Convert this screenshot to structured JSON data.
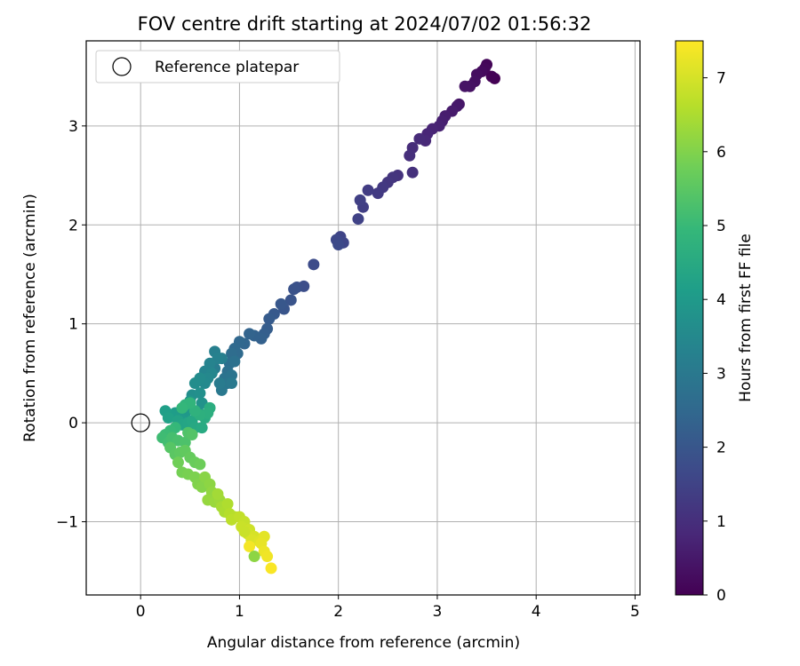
{
  "chart_data": {
    "type": "scatter",
    "title": "FOV centre drift starting at 2024/07/02 01:56:32",
    "xlabel": "Angular distance from reference (arcmin)",
    "ylabel": "Rotation from reference (arcmin)",
    "xlim": [
      -0.55,
      5.05
    ],
    "ylim": [
      -1.74,
      3.86
    ],
    "xticks": [
      0,
      1,
      2,
      3,
      4,
      5
    ],
    "yticks": [
      -1,
      0,
      1,
      2,
      3
    ],
    "grid": true,
    "legend": {
      "placement": "top-left",
      "entries": [
        "Reference platepar"
      ]
    },
    "reference_point": {
      "x": 0,
      "y": 0
    },
    "colorbar": {
      "label": "Hours from first FF file",
      "range": [
        0,
        7.5
      ],
      "ticks": [
        0,
        1,
        2,
        3,
        4,
        5,
        6,
        7
      ],
      "colormap": "viridis",
      "colors": [
        "#440154",
        "#482878",
        "#3e4989",
        "#31688e",
        "#26828e",
        "#1f9e89",
        "#35b779",
        "#6ece58",
        "#b5de2b",
        "#fde725"
      ]
    },
    "series": [
      {
        "points": [
          [
            3.58,
            3.48,
            0.0
          ],
          [
            3.55,
            3.5,
            0.05
          ],
          [
            3.5,
            3.62,
            0.1
          ],
          [
            3.48,
            3.58,
            0.15
          ],
          [
            3.45,
            3.55,
            0.2
          ],
          [
            3.4,
            3.52,
            0.25
          ],
          [
            3.38,
            3.45,
            0.3
          ],
          [
            3.33,
            3.4,
            0.35
          ],
          [
            3.28,
            3.4,
            0.4
          ],
          [
            3.22,
            3.22,
            0.45
          ],
          [
            3.2,
            3.2,
            0.5
          ],
          [
            3.15,
            3.15,
            0.55
          ],
          [
            3.08,
            3.1,
            0.6
          ],
          [
            3.05,
            3.05,
            0.65
          ],
          [
            3.02,
            3.0,
            0.7
          ],
          [
            2.95,
            2.97,
            0.75
          ],
          [
            2.9,
            2.92,
            0.8
          ],
          [
            2.88,
            2.85,
            0.85
          ],
          [
            2.82,
            2.87,
            0.9
          ],
          [
            2.75,
            2.78,
            0.95
          ],
          [
            2.72,
            2.7,
            1.0
          ],
          [
            2.75,
            2.53,
            1.05
          ],
          [
            2.6,
            2.5,
            1.1
          ],
          [
            2.55,
            2.48,
            1.15
          ],
          [
            2.5,
            2.43,
            1.2
          ],
          [
            2.45,
            2.38,
            1.25
          ],
          [
            2.4,
            2.32,
            1.3
          ],
          [
            2.3,
            2.35,
            1.35
          ],
          [
            2.25,
            2.18,
            1.4
          ],
          [
            2.22,
            2.25,
            1.45
          ],
          [
            2.2,
            2.06,
            1.5
          ],
          [
            2.02,
            1.88,
            1.55
          ],
          [
            2.05,
            1.82,
            1.6
          ],
          [
            1.98,
            1.85,
            1.65
          ],
          [
            2.0,
            1.8,
            1.7
          ],
          [
            1.75,
            1.6,
            1.75
          ],
          [
            1.65,
            1.38,
            1.8
          ],
          [
            1.58,
            1.37,
            1.85
          ],
          [
            1.55,
            1.35,
            1.9
          ],
          [
            1.52,
            1.24,
            1.95
          ],
          [
            1.45,
            1.15,
            2.0
          ],
          [
            1.42,
            1.2,
            2.05
          ],
          [
            1.35,
            1.1,
            2.1
          ],
          [
            1.3,
            1.05,
            2.15
          ],
          [
            1.28,
            0.95,
            2.2
          ],
          [
            1.25,
            0.9,
            2.25
          ],
          [
            1.22,
            0.85,
            2.3
          ],
          [
            1.15,
            0.88,
            2.35
          ],
          [
            1.1,
            0.9,
            2.4
          ],
          [
            1.05,
            0.8,
            2.45
          ],
          [
            1.0,
            0.82,
            2.5
          ],
          [
            0.95,
            0.75,
            2.55
          ],
          [
            0.98,
            0.7,
            2.6
          ],
          [
            0.92,
            0.7,
            2.65
          ],
          [
            0.9,
            0.6,
            2.7
          ],
          [
            0.88,
            0.52,
            2.75
          ],
          [
            0.95,
            0.62,
            2.8
          ],
          [
            0.85,
            0.45,
            2.85
          ],
          [
            0.92,
            0.48,
            2.9
          ],
          [
            0.88,
            0.4,
            2.95
          ],
          [
            0.82,
            0.33,
            3.0
          ],
          [
            0.92,
            0.4,
            3.05
          ],
          [
            0.8,
            0.4,
            3.1
          ],
          [
            0.75,
            0.55,
            3.15
          ],
          [
            0.82,
            0.65,
            3.2
          ],
          [
            0.75,
            0.72,
            3.25
          ],
          [
            0.78,
            0.65,
            3.3
          ],
          [
            0.7,
            0.6,
            3.35
          ],
          [
            0.65,
            0.52,
            3.4
          ],
          [
            0.72,
            0.5,
            3.45
          ],
          [
            0.68,
            0.45,
            3.5
          ],
          [
            0.65,
            0.4,
            3.55
          ],
          [
            0.6,
            0.45,
            3.6
          ],
          [
            0.55,
            0.4,
            3.65
          ],
          [
            0.52,
            0.28,
            3.7
          ],
          [
            0.6,
            0.3,
            3.75
          ],
          [
            0.62,
            0.2,
            3.8
          ],
          [
            0.58,
            0.12,
            3.85
          ],
          [
            0.5,
            0.22,
            3.9
          ],
          [
            0.48,
            0.15,
            3.95
          ],
          [
            0.45,
            0.1,
            4.0
          ],
          [
            0.4,
            0.05,
            4.05
          ],
          [
            0.35,
            0.1,
            4.1
          ],
          [
            0.3,
            0.08,
            4.15
          ],
          [
            0.25,
            0.12,
            4.2
          ],
          [
            0.28,
            0.05,
            4.25
          ],
          [
            0.38,
            0.02,
            4.3
          ],
          [
            0.42,
            -0.02,
            4.35
          ],
          [
            0.48,
            0.0,
            4.4
          ],
          [
            0.52,
            0.02,
            4.45
          ],
          [
            0.55,
            -0.05,
            4.5
          ],
          [
            0.62,
            -0.05,
            4.55
          ],
          [
            0.65,
            0.05,
            4.6
          ],
          [
            0.7,
            0.15,
            4.65
          ],
          [
            0.68,
            0.1,
            4.7
          ],
          [
            0.6,
            0.08,
            4.75
          ],
          [
            0.55,
            0.12,
            4.8
          ],
          [
            0.45,
            0.18,
            4.85
          ],
          [
            0.5,
            0.2,
            4.9
          ],
          [
            0.42,
            0.15,
            4.95
          ],
          [
            0.35,
            -0.05,
            5.0
          ],
          [
            0.3,
            -0.08,
            5.05
          ],
          [
            0.25,
            -0.12,
            5.1
          ],
          [
            0.22,
            -0.15,
            5.15
          ],
          [
            0.28,
            -0.2,
            5.2
          ],
          [
            0.32,
            -0.15,
            5.25
          ],
          [
            0.38,
            -0.18,
            5.3
          ],
          [
            0.45,
            -0.2,
            5.35
          ],
          [
            0.48,
            -0.1,
            5.4
          ],
          [
            0.52,
            -0.12,
            5.45
          ],
          [
            0.3,
            -0.25,
            5.5
          ],
          [
            0.35,
            -0.32,
            5.55
          ],
          [
            0.4,
            -0.3,
            5.6
          ],
          [
            0.45,
            -0.28,
            5.65
          ],
          [
            0.5,
            -0.35,
            5.7
          ],
          [
            0.55,
            -0.4,
            5.75
          ],
          [
            0.6,
            -0.42,
            5.8
          ],
          [
            0.38,
            -0.4,
            5.85
          ],
          [
            0.42,
            -0.5,
            5.9
          ],
          [
            0.48,
            -0.52,
            5.95
          ],
          [
            0.55,
            -0.55,
            6.0
          ],
          [
            0.58,
            -0.62,
            6.05
          ],
          [
            0.62,
            -0.65,
            6.1
          ],
          [
            0.65,
            -0.55,
            6.15
          ],
          [
            0.7,
            -0.62,
            6.2
          ],
          [
            0.72,
            -0.7,
            6.25
          ],
          [
            0.68,
            -0.78,
            6.3
          ],
          [
            0.75,
            -0.8,
            6.35
          ],
          [
            0.8,
            -0.78,
            6.4
          ],
          [
            0.78,
            -0.72,
            6.45
          ],
          [
            0.82,
            -0.85,
            6.5
          ],
          [
            0.85,
            -0.9,
            6.55
          ],
          [
            0.88,
            -0.82,
            6.6
          ],
          [
            0.9,
            -0.92,
            6.65
          ],
          [
            0.95,
            -0.95,
            6.7
          ],
          [
            0.92,
            -0.98,
            6.75
          ],
          [
            1.0,
            -0.95,
            6.8
          ],
          [
            1.05,
            -1.0,
            6.85
          ],
          [
            1.02,
            -1.05,
            6.9
          ],
          [
            1.1,
            -1.08,
            6.95
          ],
          [
            1.08,
            -1.12,
            7.0
          ],
          [
            1.15,
            -1.15,
            7.05
          ],
          [
            1.12,
            -1.18,
            7.1
          ],
          [
            1.2,
            -1.2,
            7.15
          ],
          [
            1.25,
            -1.15,
            7.2
          ],
          [
            1.22,
            -1.22,
            7.25
          ],
          [
            1.25,
            -1.3,
            7.3
          ],
          [
            1.28,
            -1.35,
            7.35
          ],
          [
            1.1,
            -1.25,
            7.4
          ],
          [
            1.32,
            -1.47,
            7.45
          ],
          [
            1.15,
            -1.35,
            6.2
          ],
          [
            1.05,
            -1.1,
            6.9
          ]
        ]
      }
    ]
  }
}
